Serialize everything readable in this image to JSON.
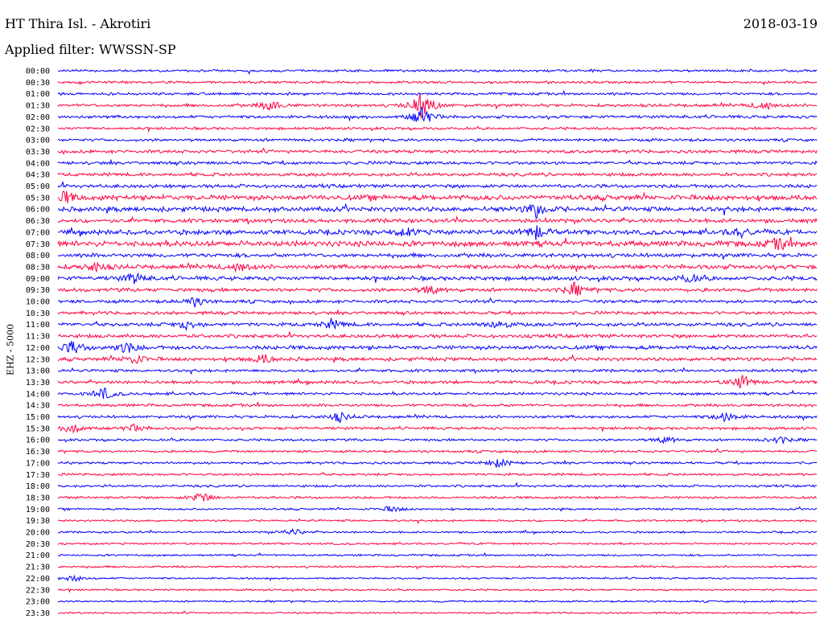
{
  "header": {
    "station": "HT Thira Isl. - Akrotiri",
    "date": "2018-03-19",
    "filter": "Applied filter: WWSSN-SP"
  },
  "chart_data": {
    "type": "line",
    "title": "HT Thira Isl. - Akrotiri",
    "ylabel": "EHZ - 5000",
    "xlabel": "",
    "colors": [
      "#0000ff",
      "#ff0040"
    ],
    "rows": [
      "00:00",
      "00:30",
      "01:00",
      "01:30",
      "02:00",
      "02:30",
      "03:00",
      "03:30",
      "04:00",
      "04:30",
      "05:00",
      "05:30",
      "06:00",
      "06:30",
      "07:00",
      "07:30",
      "08:00",
      "08:30",
      "09:00",
      "09:30",
      "10:00",
      "10:30",
      "11:00",
      "11:30",
      "12:00",
      "12:30",
      "13:00",
      "13:30",
      "14:00",
      "14:30",
      "15:00",
      "15:30",
      "16:00",
      "16:30",
      "17:00",
      "17:30",
      "18:00",
      "18:30",
      "19:00",
      "19:30",
      "20:00",
      "20:30",
      "21:00",
      "21:30",
      "22:00",
      "22:30",
      "23:00",
      "23:30"
    ],
    "noise": [
      1.2,
      1.2,
      1.3,
      1.5,
      1.5,
      1.3,
      1.4,
      1.6,
      1.6,
      1.7,
      1.8,
      2.6,
      2.4,
      2.0,
      2.4,
      2.8,
      2.0,
      2.2,
      2.0,
      1.8,
      1.6,
      1.6,
      1.8,
      1.8,
      2.0,
      1.8,
      1.4,
      1.6,
      1.4,
      1.4,
      1.4,
      1.4,
      1.2,
      1.2,
      1.2,
      1.2,
      1.2,
      1.2,
      1.0,
      1.0,
      1.0,
      1.0,
      1.0,
      1.0,
      0.9,
      0.9,
      0.9,
      0.9
    ],
    "events": [
      {
        "row": 3,
        "t": 0.28,
        "amp": 7
      },
      {
        "row": 3,
        "t": 0.93,
        "amp": 6
      },
      {
        "row": 3,
        "t": 0.48,
        "amp": 20
      },
      {
        "row": 4,
        "t": 0.48,
        "amp": 14
      },
      {
        "row": 11,
        "t": 0.01,
        "amp": 7
      },
      {
        "row": 12,
        "t": 0.63,
        "amp": 10
      },
      {
        "row": 14,
        "t": 0.63,
        "amp": 9
      },
      {
        "row": 14,
        "t": 0.46,
        "amp": 5
      },
      {
        "row": 14,
        "t": 0.9,
        "amp": 5
      },
      {
        "row": 15,
        "t": 0.95,
        "amp": 7
      },
      {
        "row": 17,
        "t": 0.05,
        "amp": 6
      },
      {
        "row": 17,
        "t": 0.24,
        "amp": 6
      },
      {
        "row": 18,
        "t": 0.1,
        "amp": 7
      },
      {
        "row": 18,
        "t": 0.83,
        "amp": 6
      },
      {
        "row": 19,
        "t": 0.68,
        "amp": 8
      },
      {
        "row": 19,
        "t": 0.49,
        "amp": 6
      },
      {
        "row": 20,
        "t": 0.18,
        "amp": 6
      },
      {
        "row": 22,
        "t": 0.17,
        "amp": 6
      },
      {
        "row": 22,
        "t": 0.36,
        "amp": 6
      },
      {
        "row": 22,
        "t": 0.58,
        "amp": 6
      },
      {
        "row": 24,
        "t": 0.02,
        "amp": 8
      },
      {
        "row": 24,
        "t": 0.09,
        "amp": 7
      },
      {
        "row": 25,
        "t": 0.1,
        "amp": 7
      },
      {
        "row": 25,
        "t": 0.27,
        "amp": 6
      },
      {
        "row": 27,
        "t": 0.9,
        "amp": 9
      },
      {
        "row": 28,
        "t": 0.06,
        "amp": 8
      },
      {
        "row": 30,
        "t": 0.37,
        "amp": 6
      },
      {
        "row": 30,
        "t": 0.88,
        "amp": 7
      },
      {
        "row": 31,
        "t": 0.02,
        "amp": 7
      },
      {
        "row": 31,
        "t": 0.1,
        "amp": 5
      },
      {
        "row": 32,
        "t": 0.8,
        "amp": 5
      },
      {
        "row": 32,
        "t": 0.95,
        "amp": 5
      },
      {
        "row": 34,
        "t": 0.58,
        "amp": 6
      },
      {
        "row": 37,
        "t": 0.19,
        "amp": 8
      },
      {
        "row": 38,
        "t": 0.44,
        "amp": 4
      },
      {
        "row": 40,
        "t": 0.31,
        "amp": 4
      },
      {
        "row": 44,
        "t": 0.02,
        "amp": 4
      }
    ]
  }
}
